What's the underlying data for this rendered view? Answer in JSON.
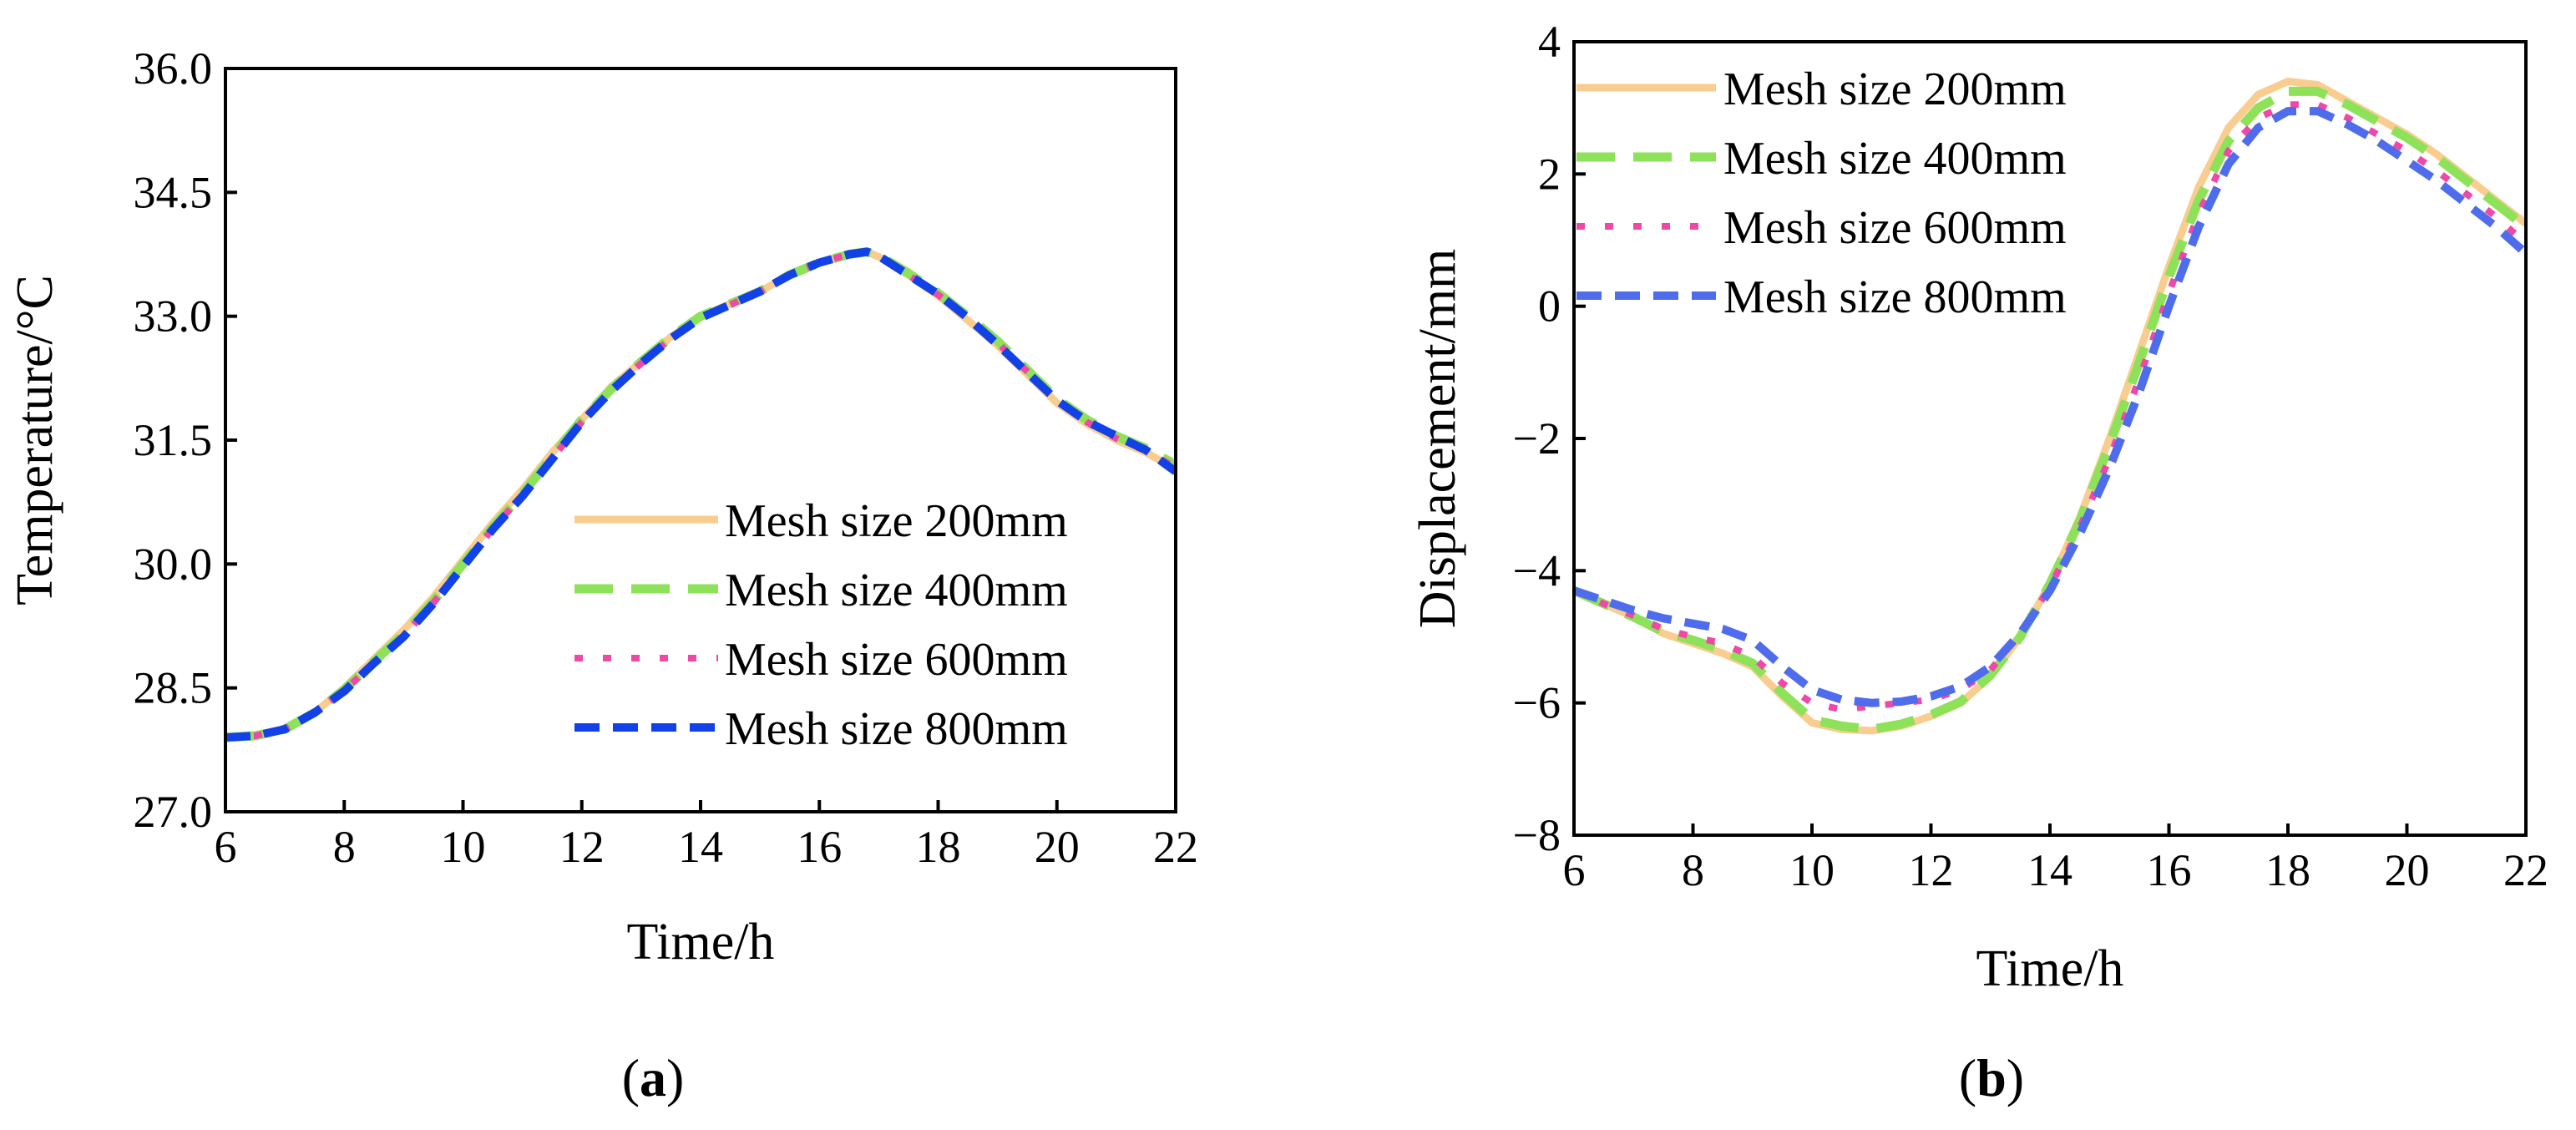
{
  "chart_data": [
    {
      "type": "line",
      "caption_letter": "a",
      "xlabel": "Time/h",
      "ylabel": "Temperature/°C",
      "xlim": [
        6,
        22
      ],
      "ylim": [
        27.0,
        36.0
      ],
      "xticks": [
        6,
        8,
        10,
        12,
        14,
        16,
        18,
        20,
        22
      ],
      "yticks": [
        27.0,
        28.5,
        30.0,
        31.5,
        33.0,
        34.5,
        36.0
      ],
      "ytick_labels": [
        "27.0",
        "28.5",
        "30.0",
        "31.5",
        "33.0",
        "34.5",
        "36.0"
      ],
      "legend_position": "bottom-right",
      "series": [
        {
          "name": "Mesh size 200mm",
          "color": "#F9CD8F",
          "style": "solid",
          "x": [
            6,
            6.5,
            7,
            7.5,
            8,
            8.5,
            9,
            9.5,
            10,
            10.5,
            11,
            11.5,
            12,
            12.5,
            13,
            13.5,
            14,
            14.5,
            15,
            15.5,
            16,
            16.5,
            16.8,
            17,
            17.5,
            18,
            18.5,
            19,
            19.5,
            20,
            20.5,
            21,
            21.5,
            22
          ],
          "y": [
            27.9,
            27.92,
            28.0,
            28.2,
            28.5,
            28.85,
            29.2,
            29.6,
            30.05,
            30.5,
            30.9,
            31.35,
            31.75,
            32.15,
            32.45,
            32.75,
            33.0,
            33.15,
            33.3,
            33.5,
            33.65,
            33.75,
            33.78,
            33.72,
            33.5,
            33.25,
            32.95,
            32.65,
            32.3,
            31.95,
            31.7,
            31.5,
            31.35,
            31.15
          ]
        },
        {
          "name": "Mesh size 400mm",
          "color": "#8EE25A",
          "style": "dashed",
          "x": [
            6,
            6.5,
            7,
            7.5,
            8,
            8.5,
            9,
            9.5,
            10,
            10.5,
            11,
            11.5,
            12,
            12.5,
            13,
            13.5,
            14,
            14.5,
            15,
            15.5,
            16,
            16.5,
            16.8,
            17,
            17.5,
            18,
            18.5,
            19,
            19.5,
            20,
            20.5,
            21,
            21.5,
            22
          ],
          "y": [
            27.9,
            27.92,
            28.0,
            28.2,
            28.48,
            28.82,
            29.15,
            29.55,
            30.0,
            30.45,
            30.85,
            31.3,
            31.75,
            32.12,
            32.45,
            32.75,
            33.0,
            33.15,
            33.3,
            33.5,
            33.65,
            33.75,
            33.78,
            33.74,
            33.52,
            33.28,
            33.0,
            32.7,
            32.35,
            32.0,
            31.75,
            31.55,
            31.4,
            31.2
          ]
        },
        {
          "name": "Mesh size 600mm",
          "color": "#F048A8",
          "style": "dotted",
          "x": [
            6,
            6.5,
            7,
            7.5,
            8,
            8.5,
            9,
            9.5,
            10,
            10.5,
            11,
            11.5,
            12,
            12.5,
            13,
            13.5,
            14,
            14.5,
            15,
            15.5,
            16,
            16.5,
            16.8,
            17,
            17.5,
            18,
            18.5,
            19,
            19.5,
            20,
            20.5,
            21,
            21.5,
            22
          ],
          "y": [
            27.9,
            27.92,
            28.0,
            28.2,
            28.47,
            28.8,
            29.13,
            29.53,
            29.98,
            30.43,
            30.83,
            31.28,
            31.72,
            32.1,
            32.43,
            32.73,
            32.98,
            33.14,
            33.3,
            33.5,
            33.65,
            33.75,
            33.78,
            33.73,
            33.5,
            33.26,
            32.98,
            32.68,
            32.33,
            31.98,
            31.72,
            31.52,
            31.37,
            31.17
          ]
        },
        {
          "name": "Mesh size 800mm",
          "color": "#1241E8",
          "style": "dashed-heavy",
          "x": [
            6,
            6.5,
            7,
            7.5,
            8,
            8.5,
            9,
            9.5,
            10,
            10.5,
            11,
            11.5,
            12,
            12.5,
            13,
            13.5,
            14,
            14.5,
            15,
            15.5,
            16,
            16.5,
            16.8,
            17,
            17.5,
            18,
            18.5,
            19,
            19.5,
            20,
            20.5,
            21,
            21.5,
            22
          ],
          "y": [
            27.9,
            27.92,
            28.0,
            28.2,
            28.46,
            28.8,
            29.12,
            29.52,
            29.97,
            30.42,
            30.82,
            31.27,
            31.72,
            32.1,
            32.43,
            32.73,
            32.98,
            33.14,
            33.3,
            33.5,
            33.65,
            33.75,
            33.78,
            33.73,
            33.5,
            33.27,
            32.98,
            32.66,
            32.32,
            31.98,
            31.73,
            31.55,
            31.38,
            31.12
          ]
        }
      ]
    },
    {
      "type": "line",
      "caption_letter": "b",
      "xlabel": "Time/h",
      "ylabel": "Displacement/mm",
      "xlim": [
        6,
        22
      ],
      "ylim": [
        -8,
        4
      ],
      "xticks": [
        6,
        8,
        10,
        12,
        14,
        16,
        18,
        20,
        22
      ],
      "yticks": [
        -8,
        -6,
        -4,
        -2,
        0,
        2,
        4
      ],
      "ytick_labels": [
        "−8",
        "−6",
        "−4",
        "−2",
        "0",
        "2",
        "4"
      ],
      "legend_position": "top-left",
      "series": [
        {
          "name": "Mesh size 200mm",
          "color": "#F9CD8F",
          "style": "solid",
          "x": [
            6,
            6.5,
            7,
            7.5,
            8,
            8.5,
            9,
            9.5,
            10,
            10.5,
            11,
            11.5,
            12,
            12.5,
            13,
            13.5,
            14,
            14.5,
            15,
            15.5,
            16,
            16.5,
            17,
            17.5,
            18,
            18.5,
            19,
            19.5,
            20,
            20.5,
            21,
            21.5,
            22
          ],
          "y": [
            -4.3,
            -4.5,
            -4.7,
            -4.95,
            -5.1,
            -5.25,
            -5.45,
            -5.9,
            -6.3,
            -6.4,
            -6.42,
            -6.35,
            -6.2,
            -6.0,
            -5.6,
            -5.0,
            -4.2,
            -3.2,
            -2.0,
            -0.7,
            0.6,
            1.8,
            2.7,
            3.2,
            3.4,
            3.35,
            3.1,
            2.85,
            2.6,
            2.3,
            1.95,
            1.6,
            1.25
          ]
        },
        {
          "name": "Mesh size 400mm",
          "color": "#8EE25A",
          "style": "dashed",
          "x": [
            6,
            6.5,
            7,
            7.5,
            8,
            8.5,
            9,
            9.5,
            10,
            10.5,
            11,
            11.5,
            12,
            12.5,
            13,
            13.5,
            14,
            14.5,
            15,
            15.5,
            16,
            16.5,
            17,
            17.5,
            18,
            18.5,
            19,
            19.5,
            20,
            20.5,
            21,
            21.5,
            22
          ],
          "y": [
            -4.3,
            -4.5,
            -4.7,
            -4.92,
            -5.05,
            -5.2,
            -5.4,
            -5.85,
            -6.25,
            -6.35,
            -6.4,
            -6.32,
            -6.18,
            -5.98,
            -5.58,
            -5.0,
            -4.2,
            -3.25,
            -2.1,
            -0.85,
            0.45,
            1.6,
            2.5,
            3.0,
            3.25,
            3.25,
            3.05,
            2.8,
            2.55,
            2.25,
            1.9,
            1.55,
            1.2
          ]
        },
        {
          "name": "Mesh size 600mm",
          "color": "#F048A8",
          "style": "dotted",
          "x": [
            6,
            6.5,
            7,
            7.5,
            8,
            8.5,
            9,
            9.5,
            10,
            10.5,
            11,
            11.5,
            12,
            12.5,
            13,
            13.5,
            14,
            14.5,
            15,
            15.5,
            16,
            16.5,
            17,
            17.5,
            18,
            18.5,
            19,
            19.5,
            20,
            20.5,
            21,
            21.5,
            22
          ],
          "y": [
            -4.3,
            -4.5,
            -4.68,
            -4.88,
            -5.0,
            -5.1,
            -5.3,
            -5.7,
            -6.0,
            -6.1,
            -6.05,
            -6.0,
            -5.95,
            -5.8,
            -5.5,
            -4.95,
            -4.25,
            -3.35,
            -2.3,
            -1.1,
            0.2,
            1.4,
            2.35,
            2.85,
            3.05,
            3.05,
            2.85,
            2.6,
            2.35,
            2.05,
            1.7,
            1.35,
            0.95
          ]
        },
        {
          "name": "Mesh size 800mm",
          "color": "#4E6CEC",
          "style": "dashed-heavy",
          "x": [
            6,
            6.5,
            7,
            7.5,
            8,
            8.5,
            9,
            9.5,
            10,
            10.5,
            11,
            11.5,
            12,
            12.5,
            13,
            13.5,
            14,
            14.5,
            15,
            15.5,
            16,
            16.5,
            17,
            17.5,
            18,
            18.5,
            19,
            19.5,
            20,
            20.5,
            21,
            21.5,
            22
          ],
          "y": [
            -4.3,
            -4.45,
            -4.6,
            -4.72,
            -4.8,
            -4.88,
            -5.05,
            -5.45,
            -5.8,
            -5.95,
            -6.0,
            -5.98,
            -5.9,
            -5.75,
            -5.45,
            -4.95,
            -4.3,
            -3.45,
            -2.45,
            -1.3,
            0.0,
            1.2,
            2.15,
            2.7,
            2.95,
            2.95,
            2.75,
            2.5,
            2.2,
            1.9,
            1.55,
            1.2,
            0.8
          ]
        }
      ]
    }
  ]
}
